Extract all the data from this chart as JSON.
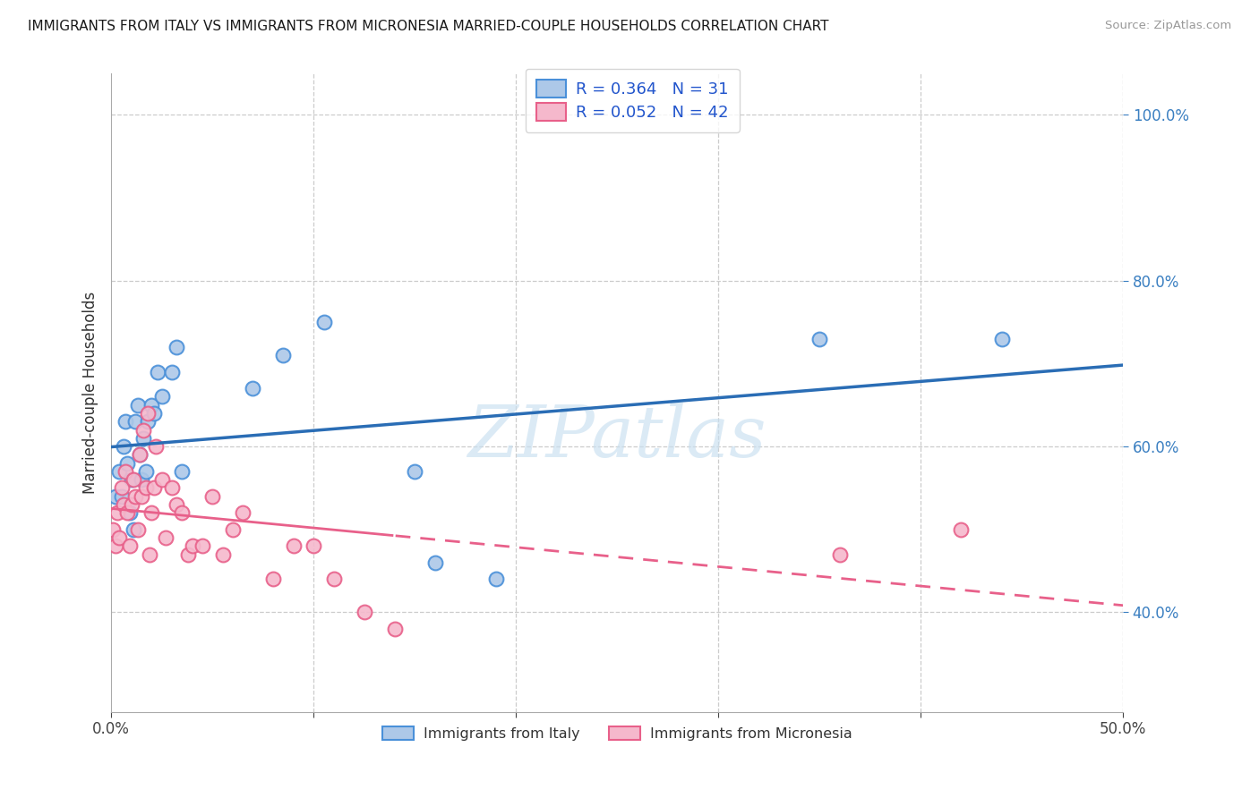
{
  "title": "IMMIGRANTS FROM ITALY VS IMMIGRANTS FROM MICRONESIA MARRIED-COUPLE HOUSEHOLDS CORRELATION CHART",
  "source": "Source: ZipAtlas.com",
  "ylabel": "Married-couple Households",
  "xlim": [
    0,
    50
  ],
  "ylim": [
    28,
    105
  ],
  "yticks": [
    40,
    60,
    80,
    100
  ],
  "ytick_labels": [
    "40.0%",
    "60.0%",
    "80.0%",
    "100.0%"
  ],
  "xtick_labels": [
    "0.0%",
    "",
    "",
    "",
    "",
    "50.0%"
  ],
  "legend1_R": "0.364",
  "legend1_N": "31",
  "legend2_R": "0.052",
  "legend2_N": "42",
  "legend1_label": "Immigrants from Italy",
  "legend2_label": "Immigrants from Micronesia",
  "color_italy_fill": "#adc8e8",
  "color_italy_edge": "#4a90d9",
  "color_micronesia_fill": "#f5b8cc",
  "color_micronesia_edge": "#e8608a",
  "color_italy_line": "#2a6db5",
  "color_micronesia_line": "#e8608a",
  "watermark": "ZIPatlas",
  "italy_x": [
    0.2,
    0.4,
    0.5,
    0.6,
    0.7,
    0.8,
    0.9,
    1.0,
    1.1,
    1.2,
    1.3,
    1.4,
    1.5,
    1.6,
    1.7,
    1.8,
    2.0,
    2.1,
    2.3,
    2.5,
    3.0,
    3.2,
    3.5,
    7.0,
    8.5,
    10.5,
    15.0,
    16.0,
    19.0,
    35.0,
    44.0
  ],
  "italy_y": [
    54,
    57,
    54,
    60,
    63,
    58,
    52,
    56,
    50,
    63,
    65,
    59,
    56,
    61,
    57,
    63,
    65,
    64,
    69,
    66,
    69,
    72,
    57,
    67,
    71,
    75,
    57,
    46,
    44,
    73,
    73
  ],
  "micronesia_x": [
    0.1,
    0.2,
    0.3,
    0.4,
    0.5,
    0.6,
    0.7,
    0.8,
    0.9,
    1.0,
    1.1,
    1.2,
    1.3,
    1.4,
    1.5,
    1.6,
    1.7,
    1.8,
    1.9,
    2.0,
    2.1,
    2.2,
    2.5,
    2.7,
    3.0,
    3.2,
    3.5,
    3.8,
    4.0,
    4.5,
    5.0,
    5.5,
    6.0,
    6.5,
    8.0,
    9.0,
    10.0,
    11.0,
    12.5,
    14.0,
    36.0,
    42.0
  ],
  "micronesia_y": [
    50,
    48,
    52,
    49,
    55,
    53,
    57,
    52,
    48,
    53,
    56,
    54,
    50,
    59,
    54,
    62,
    55,
    64,
    47,
    52,
    55,
    60,
    56,
    49,
    55,
    53,
    52,
    47,
    48,
    48,
    54,
    47,
    50,
    52,
    44,
    48,
    48,
    44,
    40,
    38,
    47,
    50
  ],
  "dash_start_x": 14.0,
  "background_color": "#ffffff"
}
